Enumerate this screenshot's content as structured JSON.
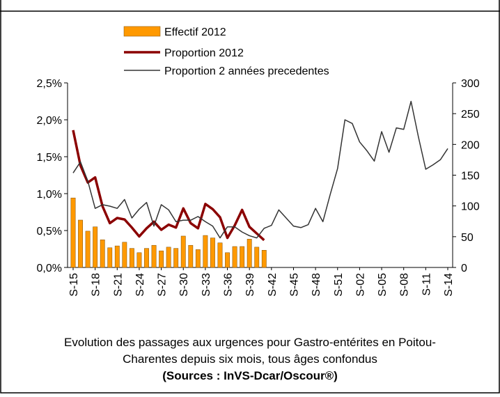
{
  "chart_data": {
    "type": "bar",
    "caption": [
      "Evolution des passages aux urgences pour Gastro-entérites en Poitou-",
      "Charentes depuis six mois, tous âges confondus"
    ],
    "source": "(Sources : InVS-Dcar/Oscour®)",
    "categories": [
      "S-15",
      null,
      null,
      "S-18",
      null,
      null,
      "S-21",
      null,
      null,
      "S-24",
      null,
      null,
      "S-27",
      null,
      null,
      "S-30",
      null,
      null,
      "S-33",
      null,
      null,
      "S-36",
      null,
      null,
      "S-39",
      null,
      null,
      "S-42",
      null,
      null,
      "S-45",
      null,
      null,
      "S-48",
      null,
      null,
      "S-51",
      null,
      null,
      "S-02",
      null,
      null,
      "S-05",
      null,
      null,
      "S-08",
      null,
      null,
      "S-11",
      null,
      null,
      "S-14"
    ],
    "ylim": [
      0,
      2.5
    ],
    "yticks": [
      {
        "value": 0,
        "label": "0,0%"
      },
      {
        "value": 0.5,
        "label": "0,5%"
      },
      {
        "value": 1,
        "label": "1,0%"
      },
      {
        "value": 1.5,
        "label": "1,5%"
      },
      {
        "value": 2,
        "label": "2,0%"
      },
      {
        "value": 2.5,
        "label": "2,5%"
      }
    ],
    "y2lim": [
      0,
      300
    ],
    "y2ticks": [
      0,
      50,
      100,
      150,
      200,
      250,
      300
    ],
    "series": [
      {
        "name": "Effectif 2012",
        "type": "bar",
        "axis": "y2",
        "color": "#ff9900",
        "values": [
          113,
          77,
          59,
          66,
          45,
          32,
          35,
          41,
          31,
          24,
          31,
          36,
          27,
          33,
          31,
          51,
          36,
          29,
          52,
          48,
          40,
          24,
          34,
          34,
          46,
          33,
          28,
          null,
          null,
          null,
          null,
          null,
          null,
          null,
          null,
          null,
          null,
          null,
          null,
          null,
          null,
          null,
          null,
          null,
          null,
          null,
          null,
          null,
          null,
          null,
          null,
          null
        ]
      },
      {
        "name": "Proportion 2012",
        "type": "line",
        "color": "#8b0000",
        "values": [
          1.86,
          1.38,
          1.15,
          1.22,
          0.83,
          0.6,
          0.67,
          0.65,
          0.54,
          0.42,
          0.53,
          0.62,
          0.51,
          0.58,
          0.54,
          0.8,
          0.6,
          0.53,
          0.86,
          0.79,
          0.68,
          0.4,
          0.57,
          0.78,
          0.55,
          0.46,
          0.37,
          null,
          null,
          null,
          null,
          null,
          null,
          null,
          null,
          null,
          null,
          null,
          null,
          null,
          null,
          null,
          null,
          null,
          null,
          null,
          null,
          null,
          null,
          null,
          null,
          null
        ]
      },
      {
        "name": "Proportion 2 années precedentes",
        "type": "line",
        "color": "#333333",
        "values": [
          1.28,
          1.43,
          1.17,
          0.8,
          0.85,
          0.83,
          0.8,
          0.92,
          0.67,
          0.79,
          0.88,
          0.56,
          0.85,
          0.78,
          0.62,
          0.64,
          0.64,
          0.69,
          0.62,
          0.56,
          0.4,
          0.55,
          0.55,
          0.48,
          0.43,
          0.4,
          0.53,
          0.57,
          0.78,
          0.67,
          0.56,
          0.54,
          0.58,
          0.8,
          0.62,
          0.99,
          1.34,
          2.0,
          1.95,
          1.7,
          1.58,
          1.44,
          1.84,
          1.56,
          1.89,
          1.87,
          2.25,
          1.77,
          1.33,
          1.39,
          1.46,
          1.61
        ]
      }
    ]
  }
}
